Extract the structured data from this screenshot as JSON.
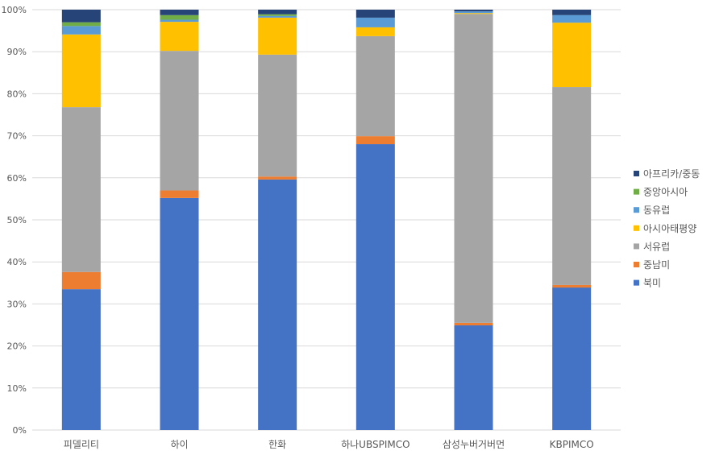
{
  "chart_data": {
    "type": "bar",
    "stacked": "percent",
    "title": "",
    "xlabel": "",
    "ylabel": "",
    "ylim": [
      0,
      100
    ],
    "yticks": [
      "0%",
      "10%",
      "20%",
      "30%",
      "40%",
      "50%",
      "60%",
      "70%",
      "80%",
      "90%",
      "100%"
    ],
    "grid": true,
    "legend_position": "right",
    "categories": [
      "피델리티",
      "하이",
      "한화",
      "하나UBSPIMCO",
      "삼성누버거버먼",
      "KBPIMCO"
    ],
    "series": [
      {
        "name": "북미",
        "color": "#4472C4",
        "values": [
          33.5,
          55.2,
          59.6,
          68.0,
          24.9,
          33.9
        ]
      },
      {
        "name": "중남미",
        "color": "#ED7D31",
        "values": [
          4.1,
          1.8,
          0.7,
          1.9,
          0.6,
          0.6
        ]
      },
      {
        "name": "서유럽",
        "color": "#A5A5A5",
        "values": [
          39.2,
          33.2,
          29.0,
          23.8,
          73.5,
          47.1
        ]
      },
      {
        "name": "아시아태평양",
        "color": "#FFC000",
        "values": [
          17.3,
          6.9,
          8.8,
          2.1,
          0.2,
          15.3
        ]
      },
      {
        "name": "동유럽",
        "color": "#5B9BD5",
        "values": [
          2.0,
          0.5,
          0.4,
          2.3,
          0.4,
          1.8
        ]
      },
      {
        "name": "중앙아시아",
        "color": "#70AD47",
        "values": [
          0.9,
          1.1,
          0.4,
          0.0,
          0.0,
          0.0
        ]
      },
      {
        "name": "아프리카/중동",
        "color": "#264478",
        "values": [
          3.0,
          1.3,
          1.1,
          1.9,
          0.4,
          1.3
        ]
      }
    ]
  }
}
